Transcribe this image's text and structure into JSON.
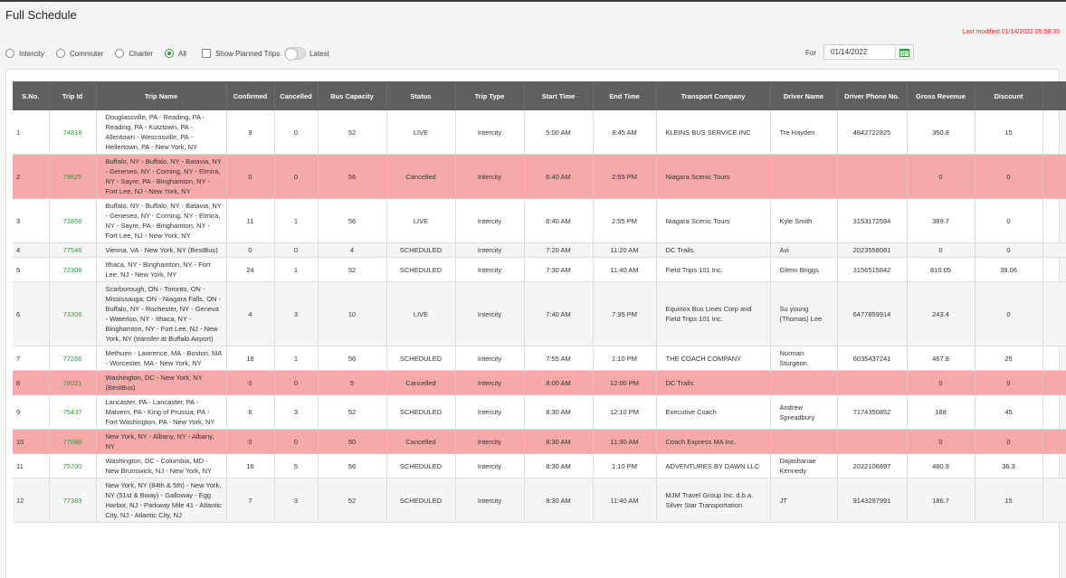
{
  "title": "Full Schedule",
  "last_modified": "Last modified 01/14/2022 05:58:35",
  "filters": {
    "intercity": "Intercity",
    "commuter": "Commuter",
    "charter": "Charter",
    "all": "All",
    "selected": "All",
    "show_planned": "Show Planned Trips",
    "latest": "Latest"
  },
  "date_filter": {
    "label": "For",
    "value": "01/14/2022"
  },
  "colors": {
    "accent": "#2e9b3e",
    "cancelled_row": "#f5a9a8",
    "header": "#5f5f5f"
  },
  "columns": [
    "S.No.",
    "Trip Id",
    "Trip Name",
    "Confirmed",
    "Cancelled",
    "Bus Capacity",
    "Status",
    "Trip Type",
    "Start Time",
    "End Time",
    "Transport Company",
    "Driver Name",
    "Driver Phone No.",
    "Gross Revenue",
    "Discount"
  ],
  "rows": [
    {
      "sno": "1",
      "trip_id": "74818",
      "name": "Douglassville, PA - Reading, PA - Reading, PA - Kutztown, PA - Allentown - Wescosville, PA - Hellertown, PA - New York, NY",
      "confirmed": "9",
      "cancelled": "0",
      "capacity": "52",
      "status": "LIVE",
      "type": "Intercity",
      "start": "5:00 AM",
      "end": "8:45 AM",
      "company": "KLEINS BUS SERVICE INC",
      "driver": "Tre Hayden",
      "phone": "4842722825",
      "revenue": "350.8",
      "discount": "15",
      "cancelled_row": false
    },
    {
      "sno": "2",
      "trip_id": "79625",
      "name": "Buffalo, NY - Buffalo, NY - Batavia, NY - Geneseo, NY - Corning, NY - Elmira, NY - Sayre, PA - Binghamton, NY - Fort Lee, NJ - New York, NY",
      "confirmed": "0",
      "cancelled": "0",
      "capacity": "56",
      "status": "Cancelled",
      "type": "Intercity",
      "start": "6:40 AM",
      "end": "2:55 PM",
      "company": "Niagara Scenic Tours",
      "driver": "",
      "phone": "",
      "revenue": "0",
      "discount": "0",
      "cancelled_row": true
    },
    {
      "sno": "3",
      "trip_id": "73858",
      "name": "Buffalo, NY - Buffalo, NY - Batavia, NY - Geneseo, NY - Corning, NY - Elmira, NY - Sayre, PA - Binghamton, NY - Fort Lee, NJ - New York, NY",
      "confirmed": "11",
      "cancelled": "1",
      "capacity": "56",
      "status": "LIVE",
      "type": "Intercity",
      "start": "6:40 AM",
      "end": "2:55 PM",
      "company": "Niagara Scenic Tours",
      "driver": "Kyle Smith",
      "phone": "3153172594",
      "revenue": "389.7",
      "discount": "0",
      "cancelled_row": false
    },
    {
      "sno": "4",
      "trip_id": "77546",
      "name": "Vienna, VA - New York, NY (BestBus)",
      "confirmed": "0",
      "cancelled": "0",
      "capacity": "4",
      "status": "SCHEDULED",
      "type": "Intercity",
      "start": "7:20 AM",
      "end": "11:20 AM",
      "company": "DC Trails",
      "driver": "Avi",
      "phone": "2023558081",
      "revenue": "0",
      "discount": "0",
      "cancelled_row": false
    },
    {
      "sno": "5",
      "trip_id": "72308",
      "name": "Ithaca, NY - Binghamton, NY - Fort Lee, NJ - New York, NY",
      "confirmed": "24",
      "cancelled": "1",
      "capacity": "52",
      "status": "SCHEDULED",
      "type": "Intercity",
      "start": "7:30 AM",
      "end": "11:40 AM",
      "company": "Field Trips 101 Inc.",
      "driver": "Glenn Briggs",
      "phone": "3156515842",
      "revenue": "810.05",
      "discount": "39.06",
      "cancelled_row": false
    },
    {
      "sno": "6",
      "trip_id": "73306",
      "name": "Scarborough, ON - Toronto, ON - Mississauga, ON - Niagara Falls, ON - Buffalo, NY - Rochester, NY - Geneva - Waterloo, NY - Ithaca, NY - Binghamton, NY - Fort Lee, NJ - New York, NY (transfer at Buffalo Airport)",
      "confirmed": "4",
      "cancelled": "3",
      "capacity": "10",
      "status": "LIVE",
      "type": "Intercity",
      "start": "7:40 AM",
      "end": "7:35 PM",
      "company": "Equinox Bus Lines Corp and Field Trips 101 Inc.",
      "driver": "Su young (Thomas) Lee",
      "phone": "6477859914",
      "revenue": "243.4",
      "discount": "0",
      "cancelled_row": false
    },
    {
      "sno": "7",
      "trip_id": "77266",
      "name": "Methuen - Lawrence, MA - Boston, MA - Worcester, MA - New York, NY",
      "confirmed": "18",
      "cancelled": "1",
      "capacity": "56",
      "status": "SCHEDULED",
      "type": "Intercity",
      "start": "7:55 AM",
      "end": "1:10 PM",
      "company": "THE COACH COMPANY",
      "driver": "Norman Sturgeon",
      "phone": "6035437241",
      "revenue": "467.8",
      "discount": "25",
      "cancelled_row": false
    },
    {
      "sno": "8",
      "trip_id": "78021",
      "name": "Washington, DC - New York, NY (BestBus)",
      "confirmed": "0",
      "cancelled": "0",
      "capacity": "5",
      "status": "Cancelled",
      "type": "Intercity",
      "start": "8:00 AM",
      "end": "12:00 PM",
      "company": "DC Trails",
      "driver": "",
      "phone": "",
      "revenue": "0",
      "discount": "0",
      "cancelled_row": true
    },
    {
      "sno": "9",
      "trip_id": "75437",
      "name": "Lancaster, PA - Lancaster, PA - Malvern, PA - King of Prussia, PA - Fort Washington, PA - New York, NY",
      "confirmed": "6",
      "cancelled": "3",
      "capacity": "52",
      "status": "SCHEDULED",
      "type": "Intercity",
      "start": "8:30 AM",
      "end": "12:10 PM",
      "company": "Executive Coach",
      "driver": "Andrew Spreadbury",
      "phone": "7174350852",
      "revenue": "188",
      "discount": "45",
      "cancelled_row": false
    },
    {
      "sno": "10",
      "trip_id": "77088",
      "name": "New York, NY - Albany, NY - Albany, NY",
      "confirmed": "0",
      "cancelled": "0",
      "capacity": "50",
      "status": "Cancelled",
      "type": "Intercity",
      "start": "8:30 AM",
      "end": "11:30 AM",
      "company": "Coach Express MA Inc.",
      "driver": "",
      "phone": "",
      "revenue": "0",
      "discount": "0",
      "cancelled_row": true
    },
    {
      "sno": "11",
      "trip_id": "75700",
      "name": "Washington, DC - Columbia, MD - New Brunswick, NJ - New York, NY",
      "confirmed": "16",
      "cancelled": "5",
      "capacity": "56",
      "status": "SCHEDULED",
      "type": "Intercity",
      "start": "8:30 AM",
      "end": "1:10 PM",
      "company": "ADVENTURES BY DAWN LLC",
      "driver": "Dajashanae Kennedy",
      "phone": "2022106897",
      "revenue": "480.9",
      "discount": "36.3",
      "cancelled_row": false
    },
    {
      "sno": "12",
      "trip_id": "77393",
      "name": "New York, NY (84th & 5th) - New York, NY (51st & Bway) - Galloway - Egg Harbor, NJ - Parkway Mile 41 - Atlantic City, NJ - Atlantic City, NJ",
      "confirmed": "7",
      "cancelled": "3",
      "capacity": "52",
      "status": "SCHEDULED",
      "type": "Intercity",
      "start": "8:30 AM",
      "end": "11:40 AM",
      "company": "MJM Travel Group Inc. d.b.a. Silver Star Transportation",
      "driver": "JT",
      "phone": "9143297991",
      "revenue": "186.7",
      "discount": "15",
      "cancelled_row": false
    }
  ]
}
